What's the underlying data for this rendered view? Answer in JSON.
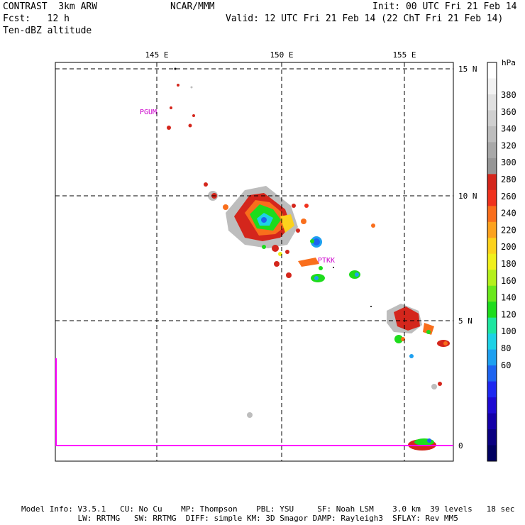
{
  "header": {
    "left_line1": "CONTRAST  3km ARW",
    "center_line1": "NCAR/MMM",
    "right_line1": "Init: 00 UTC Fri 21 Feb 14",
    "left_line2": "Fcst:   12 h",
    "right_line2": "Valid: 12 UTC Fri 21 Feb 14 (22 ChT Fri 21 Feb 14)",
    "left_line3": "Ten-dBZ altitude"
  },
  "map": {
    "lon_labels": [
      "145 E",
      "150 E",
      "155 E"
    ],
    "lat_labels": [
      "15 N",
      "10 N",
      "5 N",
      "0"
    ],
    "stations": [
      "PGUM",
      "PTKK"
    ],
    "station_color": "#cc00cc",
    "boundary_color": "#ff00ff"
  },
  "colorbar": {
    "unit": "hPa",
    "labels": [
      "380",
      "360",
      "340",
      "320",
      "300",
      "280",
      "260",
      "240",
      "220",
      "200",
      "180",
      "160",
      "140",
      "120",
      "100",
      "80",
      "60"
    ],
    "colors": [
      "#ffffff",
      "#f2f2f2",
      "#e0e0e0",
      "#cfcfcf",
      "#bdbdbd",
      "#a8a8a8",
      "#969696",
      "#d4261c",
      "#f0321e",
      "#f96e1c",
      "#fca21e",
      "#fcd21c",
      "#f0f01c",
      "#b4f01c",
      "#6ae81c",
      "#1edc1c",
      "#1ee6a0",
      "#1ed2e6",
      "#1ea0f0",
      "#1e64f0",
      "#1e28f0",
      "#1e0ad2",
      "#1400a8",
      "#0a0080",
      "#000060"
    ]
  },
  "footer": {
    "line1": "Model Info: V3.5.1   CU: No Cu    MP: Thompson    PBL: YSU     SF: Noah LSM    3.0 km  39 levels   18 sec",
    "line2": "            LW: RRTMG   SW: RRTMG  DIFF: simple KM: 3D Smagor DAMP: Rayleigh3  SFLAY: Rev MM5"
  }
}
